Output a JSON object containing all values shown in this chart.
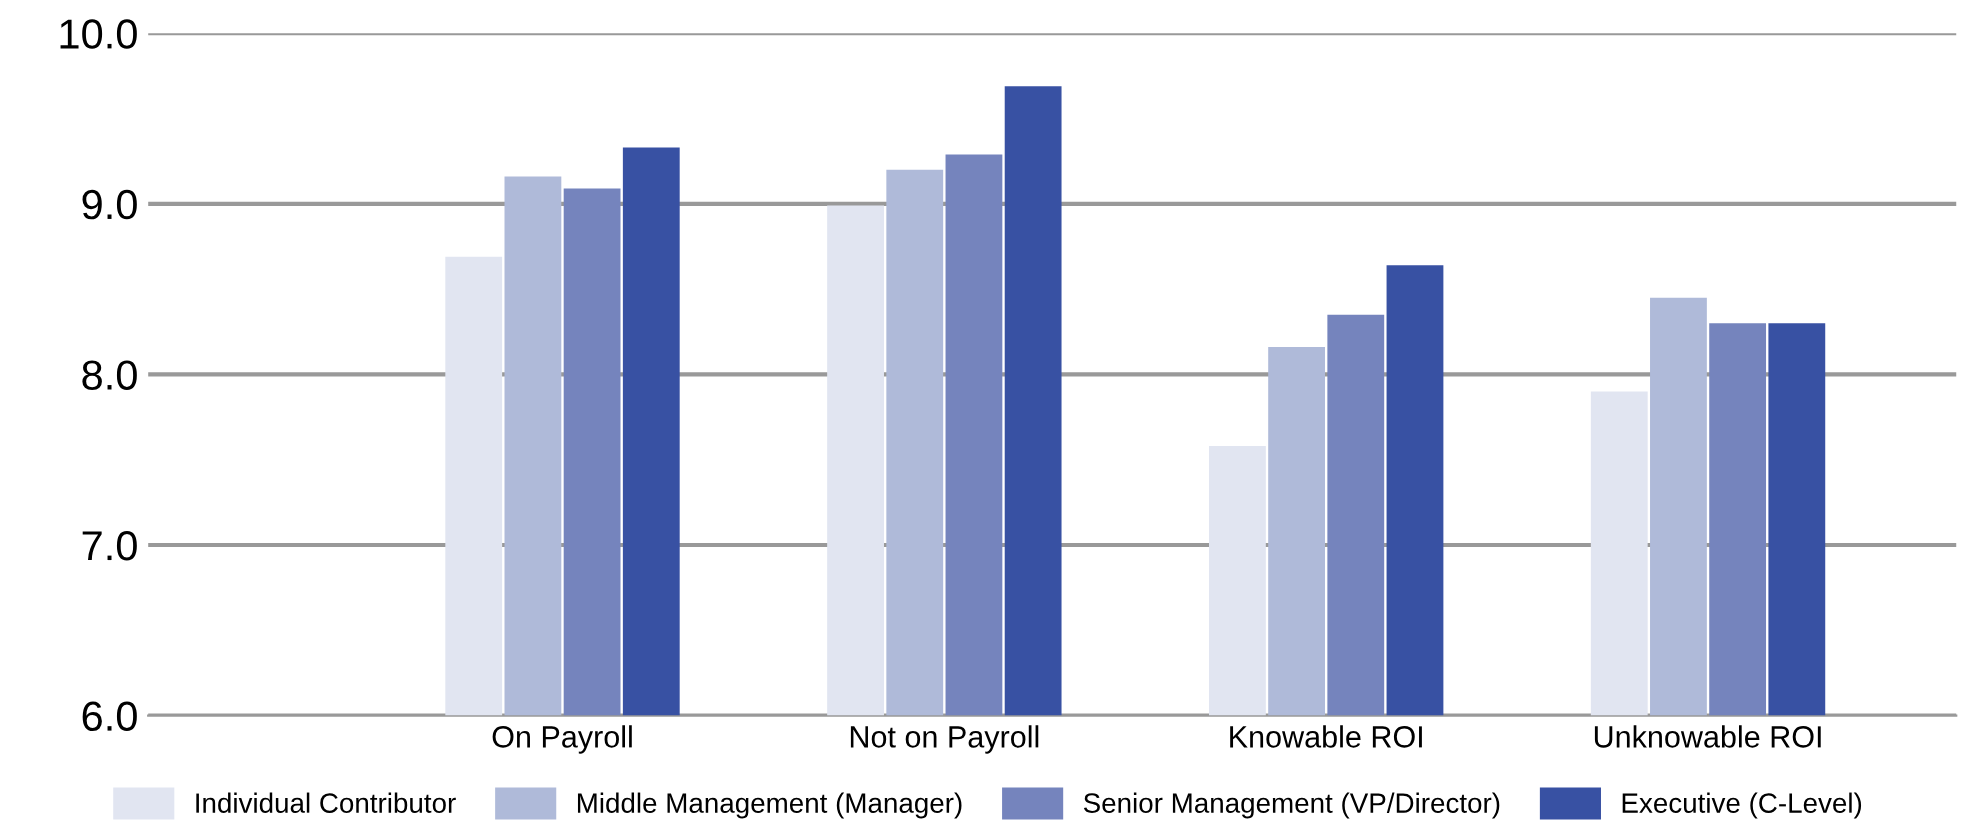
{
  "chart_data": {
    "type": "bar",
    "categories": [
      "On Payroll",
      "Not on Payroll",
      "Knowable ROI",
      "Unknowable ROI"
    ],
    "series": [
      {
        "name": "Individual Contributor",
        "color": "#e1e5f1",
        "values": [
          8.69,
          8.99,
          7.58,
          7.9
        ]
      },
      {
        "name": "Middle Management (Manager)",
        "color": "#afbad9",
        "values": [
          9.16,
          9.2,
          8.16,
          8.45
        ]
      },
      {
        "name": "Senior Management (VP/Director)",
        "color": "#7584bd",
        "values": [
          9.09,
          9.29,
          8.35,
          8.3
        ]
      },
      {
        "name": "Executive (C-Level)",
        "color": "#3851a3",
        "values": [
          9.33,
          9.69,
          8.64,
          8.3
        ]
      }
    ],
    "ylim": [
      6,
      10
    ],
    "yticks": [
      {
        "value": 6,
        "label": "6.0"
      },
      {
        "value": 7,
        "label": "7.0"
      },
      {
        "value": 8,
        "label": "8.0"
      },
      {
        "value": 9,
        "label": "9.0"
      },
      {
        "value": 10,
        "label": "10.0"
      }
    ],
    "grid": "y",
    "legend": "bottom"
  }
}
